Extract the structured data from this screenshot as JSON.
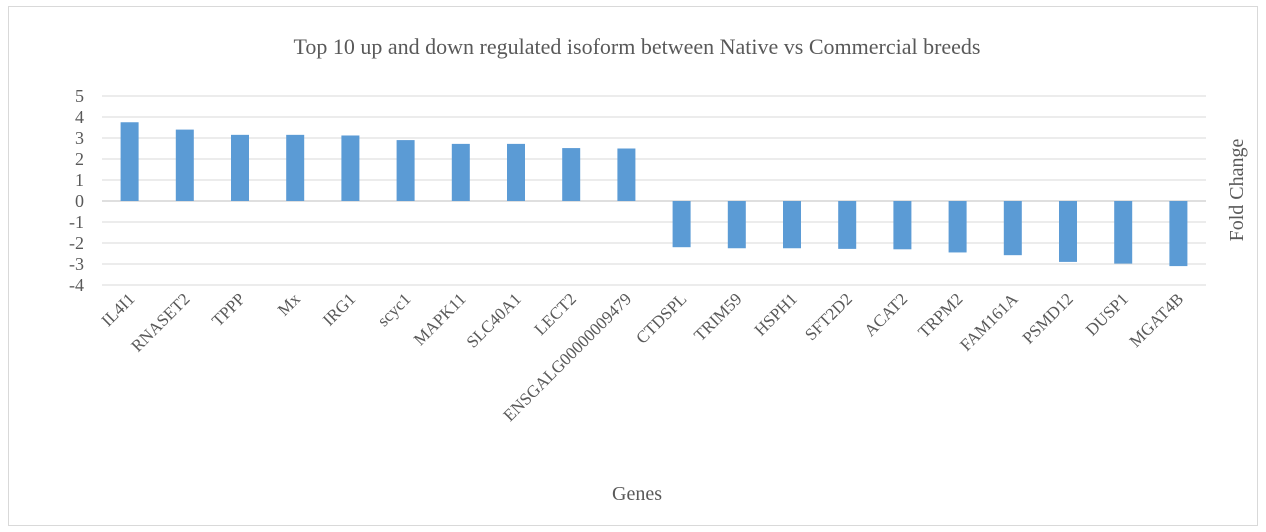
{
  "chart_data": {
    "type": "bar",
    "title": "Top 10 up and down regulated isoform between Native vs Commercial breeds",
    "xlabel": "Genes",
    "ylabel": "Fold Change",
    "ylim": [
      -4,
      5
    ],
    "yticks": [
      5,
      4,
      3,
      2,
      1,
      0,
      -1,
      -2,
      -3,
      -4
    ],
    "grid": true,
    "legend": "none",
    "bar_color": "#5b9bd5",
    "categories": [
      "IL4I1",
      "RNASET2",
      "TPPP",
      "Mx",
      "IRG1",
      "scyc1",
      "MAPK11",
      "SLC40A1",
      "LECT2",
      "ENSGALG00000009479",
      "CTDSPL",
      "TRIM59",
      "HSPH1",
      "SFT2D2",
      "ACAT2",
      "TRPM2",
      "FAM161A",
      "PSMD12",
      "DUSP1",
      "MGAT4B"
    ],
    "values": [
      3.75,
      3.4,
      3.15,
      3.15,
      3.12,
      2.9,
      2.72,
      2.72,
      2.52,
      2.5,
      -2.2,
      -2.25,
      -2.25,
      -2.28,
      -2.3,
      -2.45,
      -2.58,
      -2.9,
      -2.98,
      -3.1
    ]
  }
}
